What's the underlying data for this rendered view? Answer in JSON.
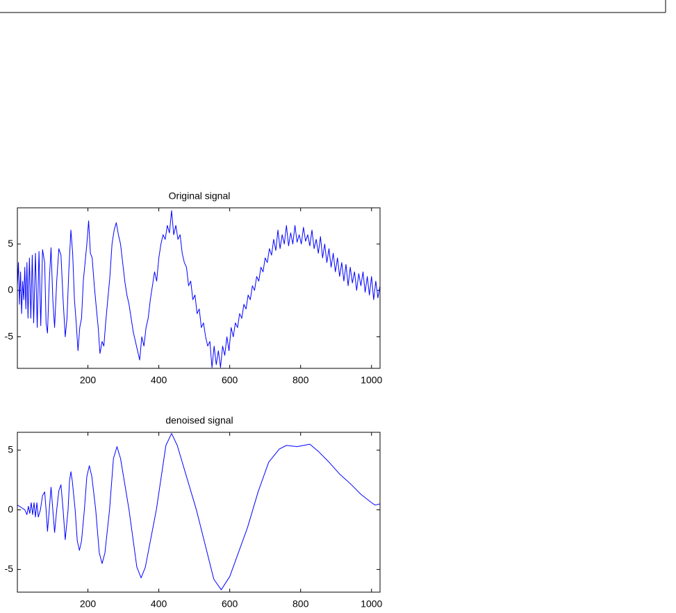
{
  "chart_data": [
    {
      "type": "line",
      "title": "Original signal",
      "color": "#0000ff",
      "xlim": [
        1,
        1024
      ],
      "ylim": [
        -8.4,
        8.9
      ],
      "xticks": [
        200,
        400,
        600,
        800,
        1000
      ],
      "yticks": [
        -5,
        0,
        5
      ],
      "x": [
        1,
        4,
        7,
        10,
        13,
        16,
        19,
        22,
        25,
        28,
        31,
        35,
        39,
        43,
        47,
        52,
        57,
        62,
        67,
        72,
        78,
        82,
        86,
        91,
        96,
        101,
        106,
        112,
        118,
        124,
        130,
        136,
        141,
        146,
        152,
        157,
        162,
        167,
        172,
        177,
        182,
        187,
        192,
        197,
        202,
        207,
        212,
        218,
        224,
        229,
        234,
        240,
        245,
        250,
        256,
        262,
        268,
        274,
        280,
        286,
        292,
        298,
        304,
        310,
        316,
        322,
        328,
        334,
        340,
        346,
        352,
        358,
        364,
        370,
        376,
        382,
        388,
        394,
        400,
        406,
        412,
        418,
        424,
        430,
        436,
        442,
        448,
        454,
        460,
        466,
        472,
        478,
        484,
        490,
        496,
        502,
        508,
        514,
        520,
        526,
        532,
        538,
        544,
        550,
        556,
        562,
        568,
        574,
        580,
        586,
        592,
        598,
        604,
        610,
        616,
        622,
        628,
        634,
        640,
        646,
        652,
        658,
        664,
        670,
        676,
        682,
        688,
        694,
        700,
        706,
        712,
        718,
        724,
        730,
        736,
        742,
        748,
        754,
        760,
        766,
        772,
        778,
        784,
        790,
        796,
        802,
        808,
        814,
        820,
        826,
        832,
        838,
        844,
        850,
        856,
        862,
        868,
        874,
        880,
        886,
        892,
        898,
        904,
        910,
        916,
        922,
        928,
        934,
        940,
        946,
        952,
        958,
        964,
        970,
        976,
        982,
        988,
        994,
        1000,
        1006,
        1012,
        1018,
        1024
      ],
      "values": [
        0.5,
        3.0,
        -1.5,
        2.0,
        -2.5,
        1.0,
        -1.0,
        2.5,
        -2.0,
        3.0,
        -3.0,
        3.5,
        -3.0,
        3.8,
        -3.5,
        4.0,
        -4.0,
        4.2,
        -3.8,
        4.4,
        3.0,
        -3.5,
        -4.6,
        1.0,
        4.6,
        -1.0,
        -4.0,
        1.0,
        4.5,
        3.8,
        -1.0,
        -5.0,
        -3.0,
        2.0,
        6.5,
        4.0,
        -1.0,
        -3.5,
        -6.5,
        -4.0,
        -3.0,
        1.0,
        3.0,
        5.0,
        7.5,
        4.0,
        3.5,
        0.5,
        -2.0,
        -4.0,
        -6.8,
        -5.5,
        -6.0,
        -3.5,
        -1.0,
        1.5,
        5.0,
        6.5,
        7.3,
        6.0,
        5.0,
        3.0,
        1.0,
        -0.5,
        -1.5,
        -3.0,
        -4.5,
        -5.5,
        -6.5,
        -7.5,
        -5.0,
        -6.0,
        -4.0,
        -3.0,
        -1.0,
        0.5,
        2.0,
        1.0,
        3.5,
        5.0,
        6.0,
        5.5,
        7.0,
        6.2,
        8.6,
        6.0,
        7.0,
        5.5,
        6.0,
        4.0,
        3.0,
        2.5,
        0.5,
        1.0,
        -1.0,
        -0.5,
        -2.5,
        -2.0,
        -4.0,
        -3.5,
        -5.0,
        -6.0,
        -5.5,
        -8.3,
        -6.0,
        -8.0,
        -6.5,
        -8.3,
        -6.0,
        -7.0,
        -5.0,
        -6.5,
        -4.0,
        -5.0,
        -3.5,
        -4.0,
        -2.5,
        -3.0,
        -1.5,
        -2.0,
        -0.5,
        -1.0,
        0.5,
        0.0,
        1.5,
        1.0,
        2.5,
        2.0,
        3.5,
        3.0,
        4.5,
        3.8,
        5.5,
        4.3,
        6.5,
        4.5,
        6.0,
        5.0,
        7.0,
        4.8,
        6.2,
        5.0,
        7.0,
        5.2,
        6.0,
        5.0,
        6.8,
        5.3,
        6.0,
        4.8,
        6.5,
        4.5,
        5.5,
        4.0,
        5.8,
        3.5,
        5.0,
        3.0,
        4.5,
        2.5,
        4.0,
        2.0,
        3.5,
        1.5,
        3.0,
        1.0,
        2.8,
        0.5,
        2.5,
        0.8,
        2.0,
        0.0,
        1.8,
        0.5,
        2.0,
        -0.2,
        1.5,
        -0.5,
        1.5,
        -1.0,
        1.0,
        -0.8,
        0.5
      ]
    },
    {
      "type": "line",
      "title": "denoised signal",
      "color": "#0000ff",
      "xlim": [
        1,
        1024
      ],
      "ylim": [
        -6.9,
        6.5
      ],
      "xticks": [
        200,
        400,
        600,
        800,
        1000
      ],
      "yticks": [
        -5,
        0,
        5
      ],
      "x": [
        1,
        12,
        22,
        28,
        32,
        36,
        40,
        44,
        48,
        52,
        56,
        60,
        66,
        72,
        78,
        82,
        86,
        91,
        96,
        101,
        106,
        112,
        118,
        124,
        130,
        136,
        144,
        148,
        152,
        156,
        164,
        170,
        176,
        182,
        190,
        197,
        204,
        211,
        222,
        232,
        240,
        248,
        261,
        272,
        282,
        292,
        316,
        338,
        350,
        362,
        393,
        420,
        436,
        452,
        506,
        555,
        576,
        600,
        650,
        680,
        710,
        740,
        760,
        790,
        826,
        850,
        880,
        910,
        940,
        970,
        1000,
        1010,
        1024
      ],
      "values": [
        0.4,
        0.2,
        0,
        -0.4,
        0.3,
        -0.3,
        0.6,
        -0.4,
        0.6,
        -0.6,
        0.6,
        -0.6,
        0,
        1.2,
        1.5,
        0,
        -1.8,
        0,
        1.9,
        0,
        -1.9,
        0,
        1.6,
        2.1,
        0,
        -2.5,
        0,
        2.4,
        3.2,
        2.4,
        0,
        -2.6,
        -3.4,
        -2.6,
        0,
        2.8,
        3.7,
        2.8,
        0,
        -3.6,
        -4.5,
        -3.6,
        0,
        4.3,
        5.3,
        4.3,
        0,
        -4.8,
        -5.7,
        -4.8,
        0,
        5.4,
        6.4,
        5.4,
        0,
        -5.8,
        -6.7,
        -5.6,
        -1.5,
        1.5,
        4.0,
        5.1,
        5.4,
        5.3,
        5.5,
        4.9,
        4.0,
        3.0,
        2.2,
        1.3,
        0.6,
        0.4,
        0.5
      ]
    }
  ]
}
